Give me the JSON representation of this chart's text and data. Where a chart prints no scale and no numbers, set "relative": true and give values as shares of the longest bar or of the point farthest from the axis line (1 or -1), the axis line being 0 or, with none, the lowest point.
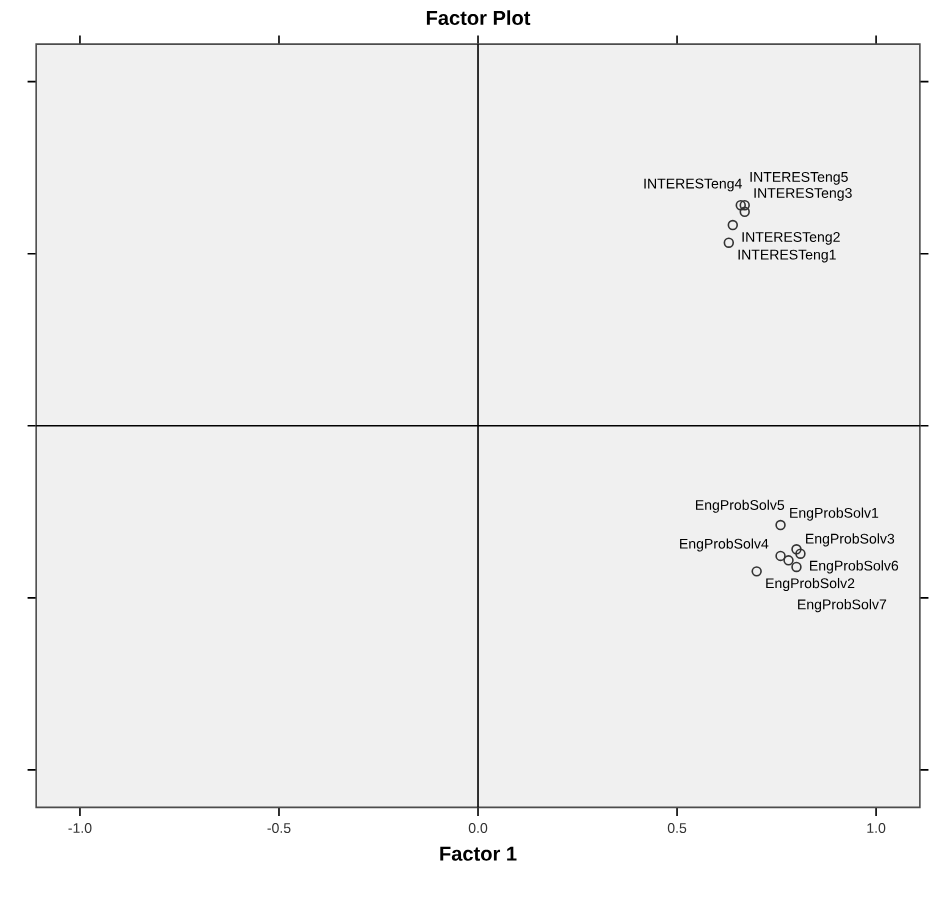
{
  "chart_data": {
    "type": "scatter",
    "title": "Factor Plot",
    "xlabel": "Factor 1",
    "relative": true,
    "x": [
      0.63,
      0.64,
      0.67,
      0.67,
      0.66,
      0.76,
      0.7,
      0.8,
      0.76,
      0.8,
      0.81,
      0.78
    ],
    "values": [
      0.83,
      0.91,
      1.0,
      0.97,
      1.0,
      -0.45,
      -0.66,
      -0.64,
      -0.59,
      -0.56,
      -0.58,
      -0.61
    ],
    "color": "#333333",
    "marker": "circle",
    "xlim": [
      -1.11,
      1.11
    ],
    "xticks": [
      {
        "value": -1.0,
        "label": "-1.0"
      },
      {
        "value": -0.5,
        "label": "-0.5"
      },
      {
        "value": 0.0,
        "label": "0.0"
      },
      {
        "value": 0.5,
        "label": "0.5"
      },
      {
        "value": 1.0,
        "label": "1.0"
      }
    ],
    "tick_labels": "x",
    "ref_lines": [
      {
        "axis": "x",
        "value": 0
      }
    ],
    "annotations": [
      {
        "text": "INTERESTeng1",
        "x": 0.63,
        "y": 0.83
      },
      {
        "text": "INTERESTeng2",
        "x": 0.64,
        "y": 0.91
      },
      {
        "text": "INTERESTeng3",
        "x": 0.67,
        "y": 1.0
      },
      {
        "text": "INTERESTeng4",
        "x": 0.67,
        "y": 0.97
      },
      {
        "text": "INTERESTeng5",
        "x": 0.66,
        "y": 1.0
      },
      {
        "text": "EngProbSolv1",
        "x": 0.76,
        "y": -0.45
      },
      {
        "text": "EngProbSolv2",
        "x": 0.7,
        "y": -0.66
      },
      {
        "text": "EngProbSolv3",
        "x": 0.8,
        "y": -0.64
      },
      {
        "text": "EngProbSolv4",
        "x": 0.76,
        "y": -0.59
      },
      {
        "text": "EngProbSolv5",
        "x": 0.8,
        "y": -0.56
      },
      {
        "text": "EngProbSolv6",
        "x": 0.81,
        "y": -0.58
      },
      {
        "text": "EngProbSolv7",
        "x": 0.78,
        "y": -0.61
      }
    ]
  }
}
